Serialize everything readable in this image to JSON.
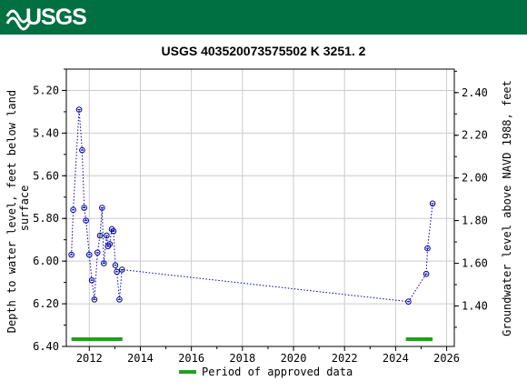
{
  "header": {
    "logo_text": "USGS",
    "background": "#006f41"
  },
  "chart_data": {
    "type": "scatter",
    "title": "USGS 403520073575502 K  3251. 2",
    "ylabel_left": "Depth to water level, feet below land surface",
    "ylabel_right": "Groundwater level above NAVD 1988, feet",
    "xlim": [
      2011.1,
      2026.3
    ],
    "ylim_left": [
      5.1,
      6.4
    ],
    "ylim_right_offset": 7.61,
    "x_ticks": [
      "2012",
      "2014",
      "2016",
      "2018",
      "2020",
      "2022",
      "2024",
      "2026"
    ],
    "y_ticks_left": [
      "5.20",
      "5.40",
      "5.60",
      "5.80",
      "6.00",
      "6.20",
      "6.40"
    ],
    "y_ticks_right": [
      "1.40",
      "1.60",
      "1.80",
      "2.00",
      "2.20",
      "2.40"
    ],
    "grid": true,
    "series": [
      {
        "marker_color": "#0000aa",
        "line_style": "dotted",
        "points": [
          {
            "x": 2011.3,
            "y": 5.97
          },
          {
            "x": 2011.37,
            "y": 5.76
          },
          {
            "x": 2011.6,
            "y": 5.29
          },
          {
            "x": 2011.72,
            "y": 5.48
          },
          {
            "x": 2011.8,
            "y": 5.75
          },
          {
            "x": 2011.87,
            "y": 5.81
          },
          {
            "x": 2012.0,
            "y": 5.97
          },
          {
            "x": 2012.1,
            "y": 6.09
          },
          {
            "x": 2012.2,
            "y": 6.18
          },
          {
            "x": 2012.32,
            "y": 5.96
          },
          {
            "x": 2012.42,
            "y": 5.88
          },
          {
            "x": 2012.5,
            "y": 5.75
          },
          {
            "x": 2012.57,
            "y": 6.01
          },
          {
            "x": 2012.68,
            "y": 5.88
          },
          {
            "x": 2012.73,
            "y": 5.93
          },
          {
            "x": 2012.8,
            "y": 5.92
          },
          {
            "x": 2012.88,
            "y": 5.85
          },
          {
            "x": 2012.95,
            "y": 5.86
          },
          {
            "x": 2013.02,
            "y": 6.02
          },
          {
            "x": 2013.08,
            "y": 6.05
          },
          {
            "x": 2013.18,
            "y": 6.18
          },
          {
            "x": 2013.28,
            "y": 6.04
          },
          {
            "x": 2024.5,
            "y": 6.19
          },
          {
            "x": 2025.2,
            "y": 6.06
          },
          {
            "x": 2025.25,
            "y": 5.94
          },
          {
            "x": 2025.45,
            "y": 5.73
          }
        ]
      }
    ],
    "approved_periods": [
      {
        "start": 2011.3,
        "end": 2013.3
      },
      {
        "start": 2024.4,
        "end": 2025.45
      }
    ],
    "approved_color": "#22a022",
    "legend": {
      "label": "Period of approved data",
      "position": "bottom"
    }
  }
}
